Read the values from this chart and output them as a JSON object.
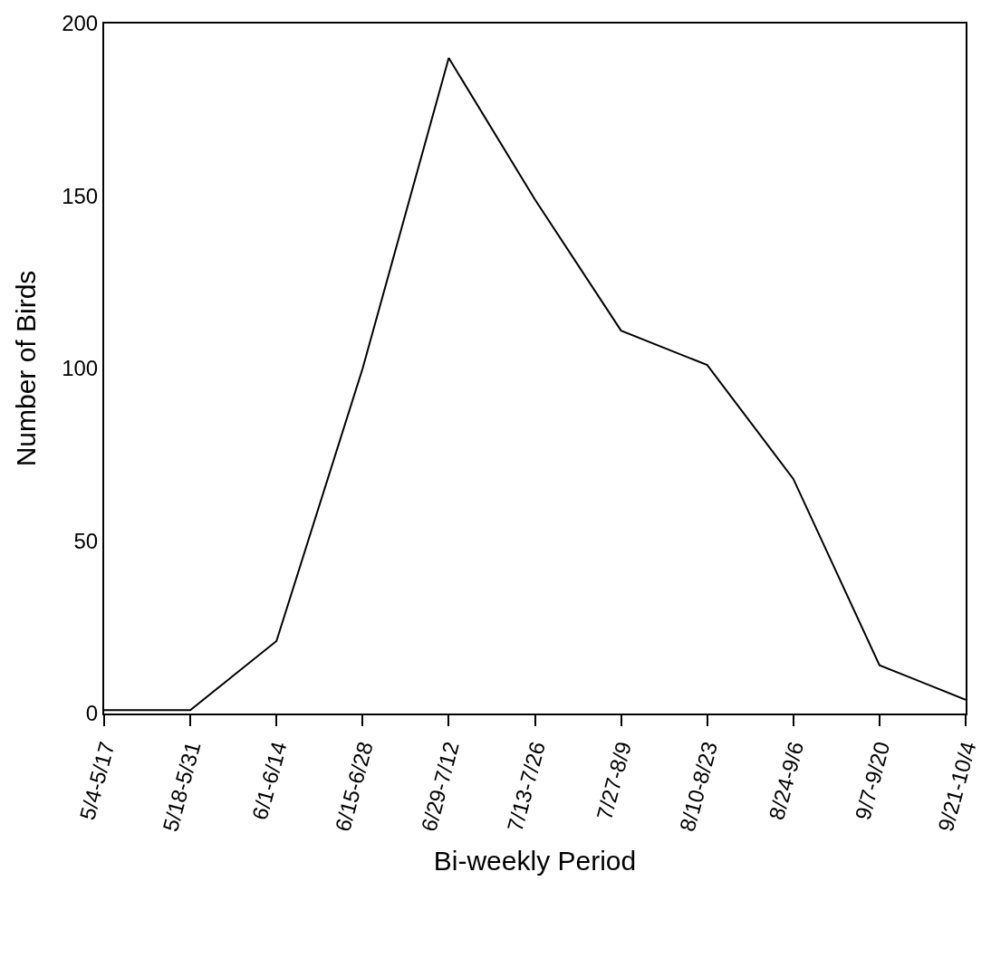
{
  "chart_data": {
    "type": "line",
    "xlabel": "Bi-weekly Period",
    "ylabel": "Number of Birds",
    "categories": [
      "5/4-5/17",
      "5/18-5/31",
      "6/1-6/14",
      "6/15-6/28",
      "6/29-7/12",
      "7/13-7/26",
      "7/27-8/9",
      "8/10-8/23",
      "8/24-9/6",
      "9/7-9/20",
      "9/21-10/4"
    ],
    "series": [
      {
        "color": "#000000",
        "values": [
          1,
          1,
          21,
          100,
          190,
          149,
          111,
          101,
          68,
          14,
          4
        ]
      }
    ],
    "ylim": [
      0,
      200
    ],
    "yticks": [
      0,
      50,
      100,
      150,
      200
    ],
    "grid": false,
    "marker": "none",
    "line_style": "solid"
  }
}
